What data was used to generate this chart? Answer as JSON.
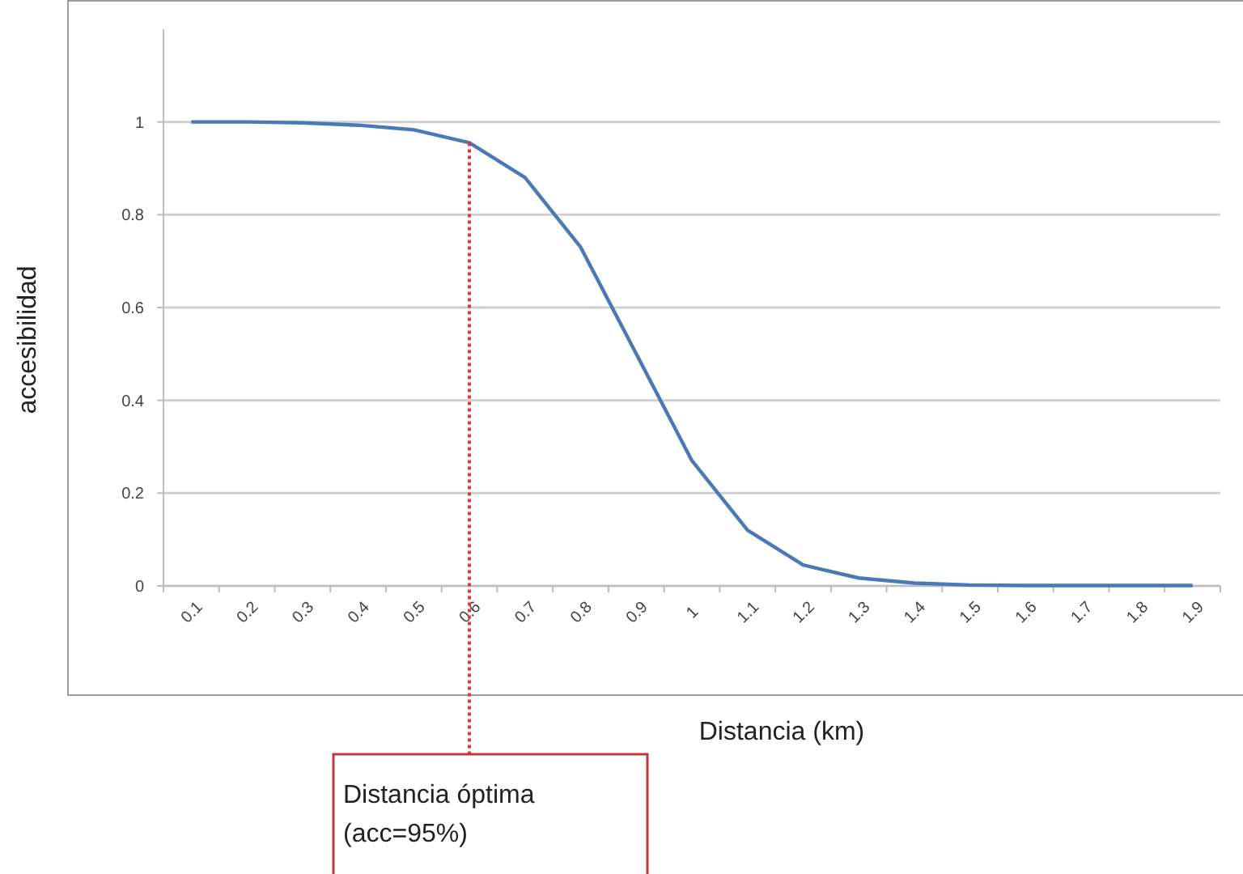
{
  "chart_data": {
    "type": "line",
    "xlabel": "Distancia (km)",
    "ylabel": "accesibilidad",
    "categories": [
      "0.1",
      "0.2",
      "0.3",
      "0.4",
      "0.5",
      "0.6",
      "0.7",
      "0.8",
      "0.9",
      "1",
      "1.1",
      "1.2",
      "1.3",
      "1.4",
      "1.5",
      "1.6",
      "1.7",
      "1.8",
      "1.9"
    ],
    "series": [
      {
        "color": "#4a7ab5",
        "values": [
          1,
          1,
          0.998,
          0.993,
          0.983,
          0.955,
          0.88,
          0.73,
          0.5,
          0.27,
          0.12,
          0.045,
          0.017,
          0.006,
          0.002,
          0.001,
          0.001,
          0.001,
          0.001
        ]
      }
    ],
    "ylim": [
      0,
      1.2
    ],
    "yticks": [
      0,
      0.2,
      0.4,
      0.6,
      0.8,
      1
    ],
    "grid": "y",
    "marker": "none",
    "line_style": "solid",
    "annotations": [
      {
        "text": "Distancia óptima\n(acc=95%)",
        "x": "0.6",
        "y": 0.955
      }
    ]
  }
}
